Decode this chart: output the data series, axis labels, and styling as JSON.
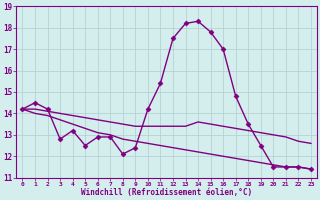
{
  "xlabel": "Windchill (Refroidissement éolien,°C)",
  "x": [
    0,
    1,
    2,
    3,
    4,
    5,
    6,
    7,
    8,
    9,
    10,
    11,
    12,
    13,
    14,
    15,
    16,
    17,
    18,
    19,
    20,
    21,
    22,
    23
  ],
  "line1": [
    14.2,
    14.5,
    14.2,
    12.8,
    13.2,
    12.5,
    12.9,
    12.9,
    12.1,
    12.4,
    14.2,
    15.4,
    17.5,
    18.2,
    18.3,
    17.8,
    17.0,
    14.8,
    13.5,
    12.5,
    11.5,
    11.5,
    11.5,
    11.4
  ],
  "line2": [
    14.2,
    14.2,
    14.1,
    14.0,
    13.9,
    13.8,
    13.7,
    13.6,
    13.5,
    13.4,
    13.4,
    13.4,
    13.4,
    13.4,
    13.6,
    13.5,
    13.4,
    13.3,
    13.2,
    13.1,
    13.0,
    12.9,
    12.7,
    12.6
  ],
  "line3": [
    14.2,
    14.0,
    13.9,
    13.7,
    13.5,
    13.3,
    13.1,
    13.0,
    12.8,
    12.7,
    12.6,
    12.5,
    12.4,
    12.3,
    12.2,
    12.1,
    12.0,
    11.9,
    11.8,
    11.7,
    11.6,
    11.5,
    11.5,
    11.4
  ],
  "color": "#800080",
  "bg_color": "#d4eeee",
  "grid_color": "#b0cccc",
  "ylim": [
    11,
    19
  ],
  "yticks": [
    11,
    12,
    13,
    14,
    15,
    16,
    17,
    18,
    19
  ],
  "xticks": [
    0,
    1,
    2,
    3,
    4,
    5,
    6,
    7,
    8,
    9,
    10,
    11,
    12,
    13,
    14,
    15,
    16,
    17,
    18,
    19,
    20,
    21,
    22,
    23
  ],
  "marker": "D",
  "markersize": 2.5,
  "linewidth": 1.0
}
